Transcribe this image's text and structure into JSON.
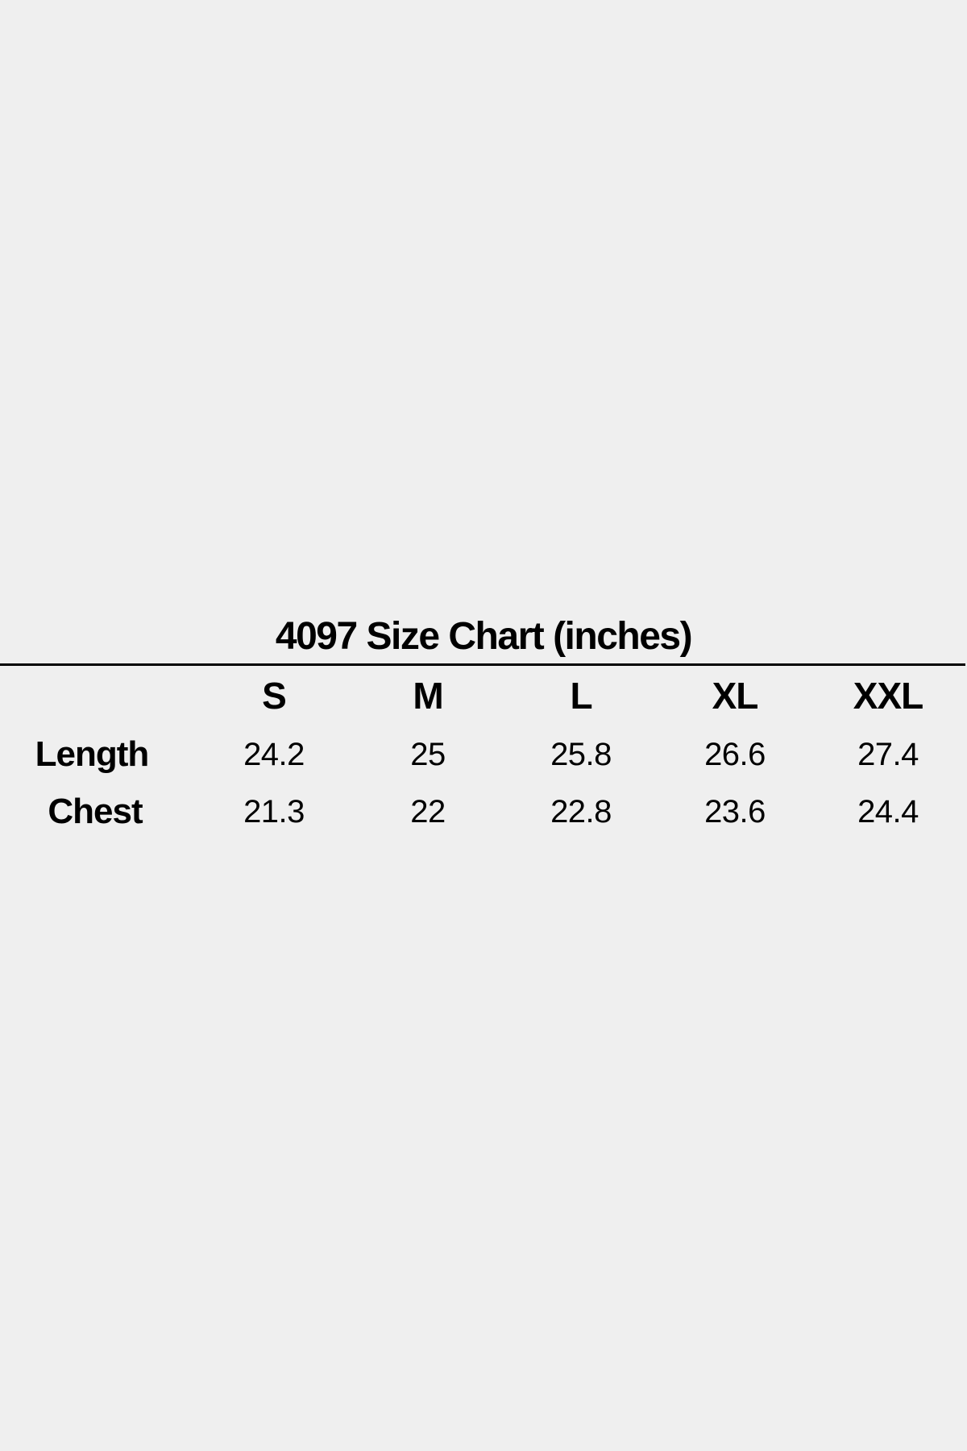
{
  "title": "4097 Size Chart (inches)",
  "table": {
    "headers": [
      "S",
      "M",
      "L",
      "XL",
      "XXL"
    ],
    "rows": [
      {
        "label": "Length",
        "values": [
          "24.2",
          "25",
          "25.8",
          "26.6",
          "27.4"
        ]
      },
      {
        "label": "Chest",
        "values": [
          "21.3",
          "22",
          "22.8",
          "23.6",
          "24.4"
        ]
      }
    ]
  }
}
